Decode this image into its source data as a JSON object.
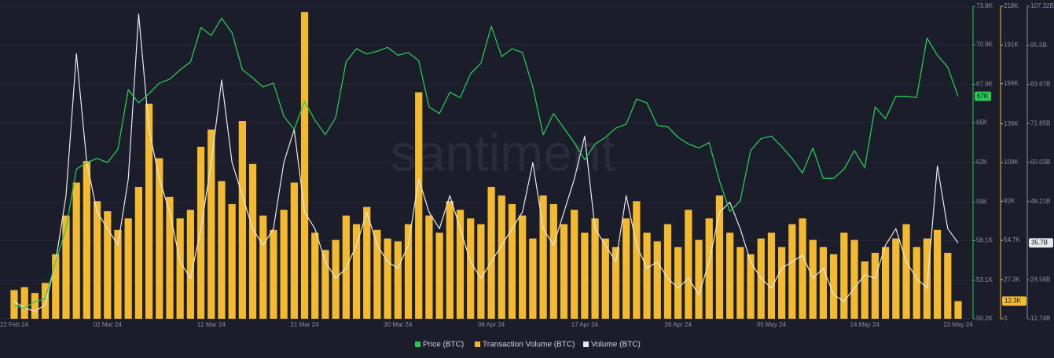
{
  "chart_data": {
    "type": "combo",
    "watermark": "santiment",
    "categories": [
      "22 Feb 24",
      null,
      null,
      null,
      null,
      null,
      null,
      null,
      null,
      "02 Mar 24",
      null,
      null,
      null,
      null,
      null,
      null,
      null,
      null,
      null,
      "12 Mar 24",
      null,
      null,
      null,
      null,
      null,
      null,
      null,
      null,
      "21 Mar 24",
      null,
      null,
      null,
      null,
      null,
      null,
      null,
      null,
      "30 Mar 24",
      null,
      null,
      null,
      null,
      null,
      null,
      null,
      null,
      "08 Apr 24",
      null,
      null,
      null,
      null,
      null,
      null,
      null,
      null,
      "17 Apr 24",
      null,
      null,
      null,
      null,
      null,
      null,
      null,
      null,
      "26 Apr 24",
      null,
      null,
      null,
      null,
      null,
      null,
      null,
      null,
      "05 May 24",
      null,
      null,
      null,
      null,
      null,
      null,
      null,
      null,
      "14 May 24",
      null,
      null,
      null,
      null,
      null,
      null,
      null,
      null,
      "23 May 24"
    ],
    "series": [
      {
        "name": "Price (BTC)",
        "type": "line",
        "axis": "y",
        "color": "#26c953",
        "last_label": "67K",
        "values": [
          51200,
          51000,
          51500,
          51700,
          54500,
          57000,
          61500,
          62000,
          62300,
          62000,
          63000,
          67500,
          66500,
          67200,
          68000,
          68300,
          69000,
          69600,
          72200,
          71600,
          72900,
          71800,
          69000,
          68400,
          67700,
          68000,
          65500,
          64500,
          66600,
          65200,
          64100,
          65400,
          69600,
          70600,
          70200,
          70400,
          70700,
          70100,
          70300,
          69700,
          66200,
          65700,
          67300,
          66900,
          68700,
          69500,
          72300,
          70000,
          70600,
          70300,
          67700,
          64100,
          65700,
          64600,
          63500,
          62200,
          63400,
          63900,
          64600,
          64900,
          66800,
          66500,
          64800,
          64700,
          63900,
          63400,
          63100,
          63500,
          60600,
          58300,
          59100,
          62900,
          63800,
          64000,
          63200,
          62300,
          61200,
          63100,
          60800,
          60800,
          61500,
          62900,
          61600,
          66200,
          65300,
          67000,
          67000,
          66900,
          71400,
          70100,
          69200,
          67000
        ]
      },
      {
        "name": "Transaction Volume (BTC)",
        "type": "bar",
        "axis": "y2",
        "color": "#f3ba2f",
        "last_label": "12.3K",
        "values": [
          20000,
          22000,
          18000,
          25000,
          45000,
          72000,
          95000,
          110000,
          82000,
          75000,
          62000,
          70000,
          92000,
          150000,
          112000,
          85000,
          70000,
          76000,
          120000,
          132000,
          96000,
          80000,
          138000,
          108000,
          72000,
          62000,
          76000,
          95000,
          214000,
          60000,
          48000,
          55000,
          72000,
          66000,
          78000,
          62000,
          56000,
          54000,
          66000,
          158000,
          72000,
          60000,
          82000,
          76000,
          70000,
          66000,
          92000,
          86000,
          80000,
          72000,
          56000,
          86000,
          80000,
          66000,
          76000,
          60000,
          70000,
          56000,
          50000,
          70000,
          82000,
          60000,
          54000,
          66000,
          50000,
          76000,
          55000,
          70000,
          86000,
          60000,
          50000,
          45000,
          56000,
          60000,
          50000,
          66000,
          70000,
          55000,
          50000,
          45000,
          60000,
          55000,
          40000,
          46000,
          50000,
          56000,
          66000,
          50000,
          56000,
          62000,
          46000,
          12300
        ]
      },
      {
        "name": "Volume (BTC)",
        "type": "line",
        "axis": "y3",
        "color": "#e8e8f0",
        "last_label": "35.7B",
        "values": [
          18000000000.0,
          16000000000.0,
          15000000000.0,
          17000000000.0,
          30000000000.0,
          50000000000.0,
          93000000000.0,
          60000000000.0,
          45000000000.0,
          40000000000.0,
          35000000000.0,
          55000000000.0,
          105000000000.0,
          70000000000.0,
          55000000000.0,
          45000000000.0,
          30000000000.0,
          25000000000.0,
          40000000000.0,
          60000000000.0,
          85000000000.0,
          60000000000.0,
          50000000000.0,
          40000000000.0,
          35000000000.0,
          40000000000.0,
          60000000000.0,
          70000000000.0,
          45000000000.0,
          40000000000.0,
          30000000000.0,
          25000000000.0,
          28000000000.0,
          35000000000.0,
          45000000000.0,
          35000000000.0,
          30000000000.0,
          28000000000.0,
          35000000000.0,
          55000000000.0,
          45000000000.0,
          40000000000.0,
          50000000000.0,
          40000000000.0,
          30000000000.0,
          25000000000.0,
          30000000000.0,
          35000000000.0,
          40000000000.0,
          45000000000.0,
          60000000000.0,
          40000000000.0,
          35000000000.0,
          45000000000.0,
          55000000000.0,
          68000000000.0,
          40000000000.0,
          35000000000.0,
          30000000000.0,
          50000000000.0,
          35000000000.0,
          28000000000.0,
          30000000000.0,
          25000000000.0,
          22000000000.0,
          25000000000.0,
          20000000000.0,
          30000000000.0,
          45000000000.0,
          48000000000.0,
          40000000000.0,
          30000000000.0,
          25000000000.0,
          22000000000.0,
          28000000000.0,
          30000000000.0,
          32000000000.0,
          25000000000.0,
          28000000000.0,
          20000000000.0,
          18000000000.0,
          22000000000.0,
          26000000000.0,
          25000000000.0,
          35000000000.0,
          40000000000.0,
          30000000000.0,
          25000000000.0,
          22000000000.0,
          59000000000.0,
          40000000000.0,
          35700000000.0
        ]
      }
    ],
    "ylim": [
      50200,
      73800
    ],
    "yticks": [
      {
        "value": 50200,
        "label": "50.2K"
      },
      {
        "value": 53100,
        "label": "53.1K"
      },
      {
        "value": 56100,
        "label": "56.1K"
      },
      {
        "value": 59000,
        "label": "59K"
      },
      {
        "value": 62000,
        "label": "62K"
      },
      {
        "value": 65000,
        "label": "65K"
      },
      {
        "value": 67900,
        "label": "67.9K"
      },
      {
        "value": 70900,
        "label": "70.9K"
      },
      {
        "value": 73800,
        "label": "73.8K"
      }
    ],
    "y2lim": [
      0,
      218000
    ],
    "y2ticks": [
      0,
      {
        "value": 27300,
        "label": "27.3K"
      },
      {
        "value": 54700,
        "label": "54.7K"
      },
      {
        "value": 82000,
        "label": "82K"
      },
      {
        "value": 109000,
        "label": "109K"
      },
      {
        "value": 136000,
        "label": "136K"
      },
      {
        "value": 164000,
        "label": "164K"
      },
      {
        "value": 191000,
        "label": "191K"
      },
      {
        "value": 218000,
        "label": "218K"
      }
    ],
    "y3lim": [
      12740000000.0,
      107320000000.0
    ],
    "y3ticks": [
      {
        "value": 12740000000.0,
        "label": "12.74B"
      },
      {
        "value": 24560000000.0,
        "label": "24.56B"
      },
      {
        "value": 48210000000.0,
        "label": "48.21B"
      },
      {
        "value": 60030000000.0,
        "label": "60.03B"
      },
      {
        "value": 71850000000.0,
        "label": "71.85B"
      },
      {
        "value": 83670000000.0,
        "label": "83.67B"
      },
      {
        "value": 95500000000.0,
        "label": "95.5B"
      },
      {
        "value": 107320000000.0,
        "label": "107.32B"
      }
    ],
    "grid": true
  }
}
